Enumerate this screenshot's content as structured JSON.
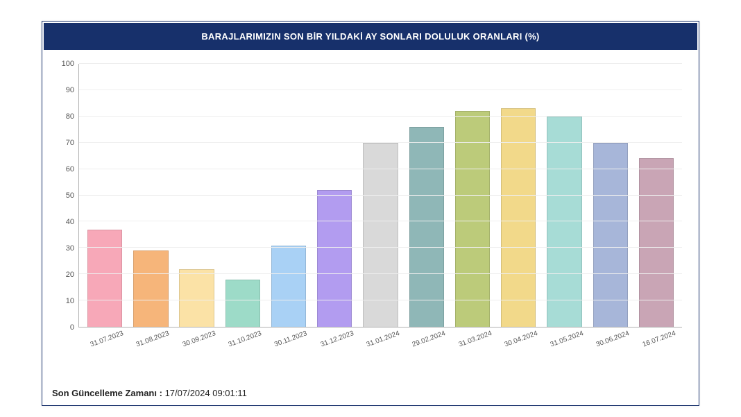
{
  "panel": {
    "title": "BARAJLARIMIZIN SON BİR YILDAKİ AY SONLARI DOLULUK ORANLARI (%)",
    "header_bg": "#17306b",
    "header_color": "#ffffff",
    "border_color": "#17306b"
  },
  "chart": {
    "type": "bar",
    "background_color": "#ffffff",
    "grid_color": "#eeeeee",
    "axis_color": "#b0b0b0",
    "tick_color": "#555555",
    "label_fontsize": 11,
    "xlabel_fontsize": 10,
    "xlabel_rotation_deg": -20,
    "ylim": [
      0,
      100
    ],
    "ytick_step": 10,
    "yticks": [
      0,
      10,
      20,
      30,
      40,
      50,
      60,
      70,
      80,
      90,
      100
    ],
    "bar_width": 0.76,
    "categories": [
      "31.07.2023",
      "31.08.2023",
      "30.09.2023",
      "31.10.2023",
      "30.11.2023",
      "31.12.2023",
      "31.01.2024",
      "29.02.2024",
      "31.03.2024",
      "30.04.2024",
      "31.05.2024",
      "30.06.2024",
      "16.07.2024"
    ],
    "values": [
      37,
      29,
      22,
      18,
      31,
      52,
      70,
      76,
      82,
      83,
      80,
      70,
      64
    ],
    "bar_colors": [
      "#f7a8b8",
      "#f6b57a",
      "#fbe2a6",
      "#9ddbc8",
      "#a9d1f5",
      "#b29cf0",
      "#d9d9d9",
      "#8fb7b7",
      "#bccb7a",
      "#f2d98a",
      "#a7dcd6",
      "#a7b6d9",
      "#c9a5b5"
    ]
  },
  "footer": {
    "label": "Son Güncelleme Zamanı :",
    "value": "17/07/2024 09:01:11"
  }
}
